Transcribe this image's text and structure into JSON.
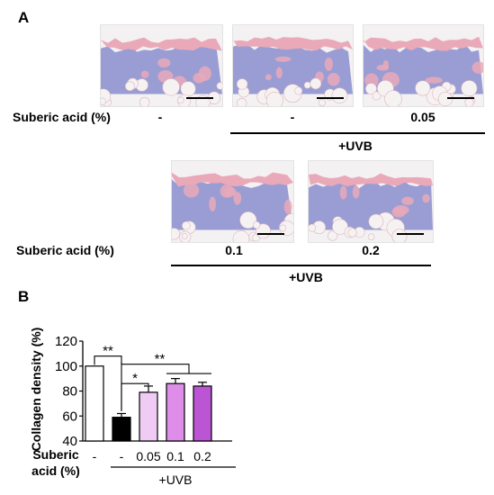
{
  "panel_a": {
    "letter": "A",
    "row1": {
      "label": "Suberic acid (%)",
      "doses": [
        "-",
        "-",
        "0.05"
      ],
      "uvb_label": "+UVB"
    },
    "row2": {
      "label": "Suberic acid (%)",
      "doses": [
        "0.1",
        "0.2"
      ],
      "uvb_label": "+UVB"
    },
    "colors": {
      "stain_blue": "#8f93cf",
      "stain_pink": "#e9a9b9",
      "fat": "#f7f2f2"
    }
  },
  "panel_b": {
    "letter": "B",
    "dose_row_label": "Suberic acid (%)",
    "uvb_label": "+UVB"
  },
  "chart_data": {
    "type": "bar",
    "ylabel": "Collagen density (%)",
    "xlabel": "",
    "ylim": [
      40,
      120
    ],
    "yticks": [
      "40",
      "60",
      "80",
      "100",
      "120"
    ],
    "categories": [
      "-",
      "-",
      "0.05",
      "0.1",
      "0.2"
    ],
    "values": [
      100,
      59,
      79,
      86,
      84
    ],
    "errors": [
      0,
      3,
      5,
      4,
      3
    ],
    "colors": [
      "#ffffff",
      "#000000",
      "#f0ccf5",
      "#de8ee8",
      "#bb55d4"
    ],
    "significance": [
      {
        "label": "**",
        "between": [
          "0",
          "1"
        ]
      },
      {
        "label": "*",
        "between": [
          "1",
          "2"
        ]
      },
      {
        "label": "**",
        "between": [
          "1",
          "3-4"
        ]
      }
    ],
    "legend": "none",
    "grid": false
  }
}
